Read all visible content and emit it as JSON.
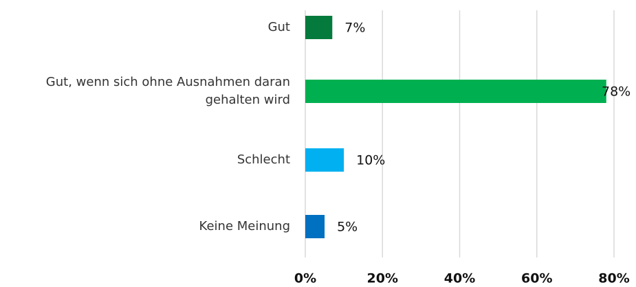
{
  "chart_data": {
    "type": "hbar",
    "categories": [
      "Gut",
      "Gut, wenn sich ohne Ausnahmen daran gehalten wird",
      "Schlecht",
      "Keine Meinung"
    ],
    "values": [
      7,
      78,
      10,
      5
    ],
    "value_labels": [
      "7%",
      "78%",
      "10%",
      "5%"
    ],
    "colors": [
      "#047a3c",
      "#00b050",
      "#00b0f0",
      "#0070c0"
    ],
    "xlim": [
      0,
      80
    ],
    "xticks": [
      {
        "value": 0,
        "label": "0%"
      },
      {
        "value": 20,
        "label": "20%"
      },
      {
        "value": 40,
        "label": "40%"
      },
      {
        "value": 60,
        "label": "60%"
      },
      {
        "value": 80,
        "label": "80%"
      }
    ],
    "grid": true
  }
}
